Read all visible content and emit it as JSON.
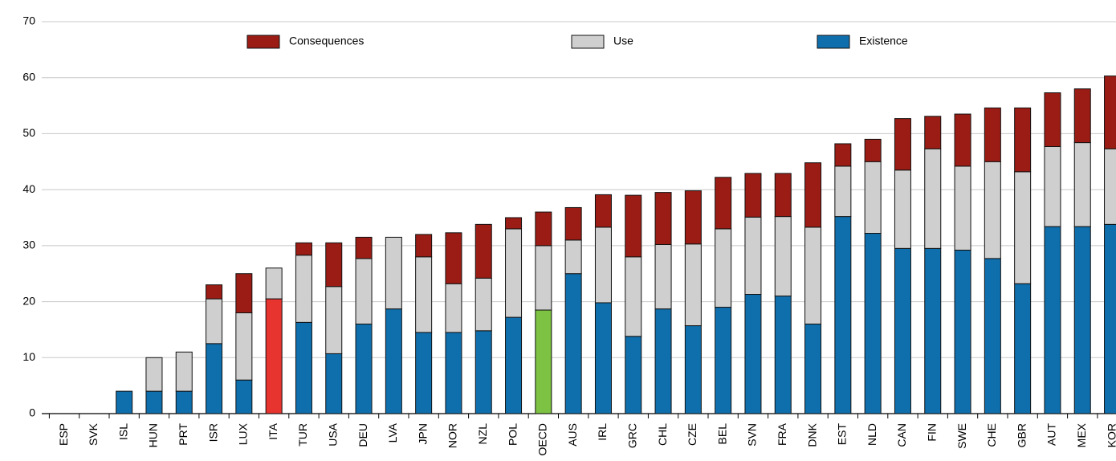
{
  "chart_data": {
    "type": "stacked_bar",
    "categories": [
      "ESP",
      "SVK",
      "ISL",
      "HUN",
      "PRT",
      "ISR",
      "LUX",
      "ITA",
      "TUR",
      "USA",
      "DEU",
      "LVA",
      "JPN",
      "NOR",
      "NZL",
      "POL",
      "OECD",
      "AUS",
      "IRL",
      "GRC",
      "CHL",
      "CZE",
      "BEL",
      "SVN",
      "FRA",
      "DNK",
      "EST",
      "NLD",
      "CAN",
      "FIN",
      "SWE",
      "CHE",
      "GBR",
      "AUT",
      "MEX",
      "KOR"
    ],
    "series": [
      {
        "name": "Existence",
        "color": "#0f6fad",
        "colors": [
          "#0f6fad",
          "#0f6fad",
          "#0f6fad",
          "#0f6fad",
          "#0f6fad",
          "#0f6fad",
          "#0f6fad",
          "#e8342f",
          "#0f6fad",
          "#0f6fad",
          "#0f6fad",
          "#0f6fad",
          "#0f6fad",
          "#0f6fad",
          "#0f6fad",
          "#0f6fad",
          "#7dc242",
          "#0f6fad",
          "#0f6fad",
          "#0f6fad",
          "#0f6fad",
          "#0f6fad",
          "#0f6fad",
          "#0f6fad",
          "#0f6fad",
          "#0f6fad",
          "#0f6fad",
          "#0f6fad",
          "#0f6fad",
          "#0f6fad",
          "#0f6fad",
          "#0f6fad",
          "#0f6fad",
          "#0f6fad",
          "#0f6fad",
          "#0f6fad"
        ],
        "values": [
          0,
          0,
          4,
          4,
          4,
          12.5,
          6,
          20.5,
          16.3,
          10.7,
          16,
          18.7,
          14.5,
          14.5,
          14.8,
          17.2,
          18.5,
          25,
          19.8,
          13.8,
          18.7,
          15.7,
          19,
          21.3,
          21,
          16,
          35.2,
          32.2,
          29.5,
          29.5,
          29.2,
          27.7,
          23.2,
          33.4,
          33.4,
          33.8
        ]
      },
      {
        "name": "Use",
        "color": "#cfcfcf",
        "values": [
          0,
          0,
          0,
          6,
          7,
          8,
          12,
          5.5,
          12,
          12,
          11.7,
          12.8,
          13.5,
          8.7,
          9.4,
          15.8,
          11.5,
          6,
          13.5,
          14.2,
          11.5,
          14.6,
          14,
          13.8,
          14.2,
          17.3,
          9,
          12.8,
          14,
          17.8,
          15,
          17.3,
          20,
          14.3,
          15,
          13.5
        ]
      },
      {
        "name": "Consequences",
        "color": "#9b1c14",
        "values": [
          0,
          0,
          0,
          0,
          0,
          2.5,
          7,
          0,
          2.2,
          7.8,
          3.8,
          0,
          4,
          9.1,
          9.6,
          2,
          6,
          5.8,
          5.8,
          11,
          9.3,
          9.5,
          9.2,
          7.8,
          7.7,
          11.5,
          4,
          4,
          9.2,
          5.8,
          9.3,
          9.6,
          11.4,
          9.6,
          9.6,
          13
        ]
      }
    ],
    "ylim": [
      0,
      70
    ],
    "yticks": [
      0,
      10,
      20,
      30,
      40,
      50,
      60,
      70
    ],
    "grid": true
  }
}
